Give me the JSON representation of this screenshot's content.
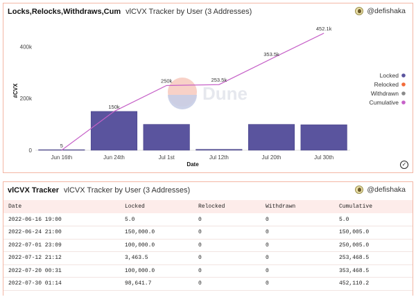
{
  "chart_panel": {
    "title": "Locks,Relocks,Withdraws,Cum",
    "subtitle": "vlCVX Tracker by User (3 Addresses)",
    "author": "@defishaka",
    "watermark": "Dune"
  },
  "chart_data": {
    "type": "bar",
    "categories": [
      "Jun 16th",
      "Jun 24th",
      "Jul 1st",
      "Jul 12th",
      "Jul 20th",
      "Jul 30th"
    ],
    "xlabel": "Date",
    "ylabel": "#CVX",
    "ylim": [
      0,
      460000
    ],
    "yticks": [
      0,
      200000,
      400000
    ],
    "ytick_labels": [
      "0",
      "200k",
      "400k"
    ],
    "legend_position": "right",
    "series": [
      {
        "name": "Locked",
        "type": "bar",
        "color": "#5a549e",
        "values": [
          5,
          150000,
          100000,
          3463.5,
          100000,
          98641.7
        ]
      },
      {
        "name": "Relocked",
        "type": "bar",
        "color": "#f26b3a",
        "values": [
          0,
          0,
          0,
          0,
          0,
          0
        ]
      },
      {
        "name": "Withdrawn",
        "type": "bar",
        "color": "#8a8a8a",
        "values": [
          0,
          0,
          0,
          0,
          0,
          0
        ]
      },
      {
        "name": "Cumulative",
        "type": "line",
        "color": "#c661c8",
        "values": [
          5,
          150005,
          250005,
          253468.5,
          353468.5,
          452110.2
        ],
        "labels": [
          "5",
          "150k",
          "250k",
          "253.5k",
          "353.5k",
          "452.1k"
        ]
      }
    ]
  },
  "table_panel": {
    "title": "vlCVX Tracker",
    "subtitle": "vlCVX Tracker by User (3 Addresses)",
    "author": "@defishaka",
    "columns": [
      "Date",
      "Locked",
      "Relocked",
      "Withdrawn",
      "Cumulative"
    ],
    "rows": [
      [
        "2022-06-16 19:00",
        "5.0",
        "0",
        "0",
        "5.0"
      ],
      [
        "2022-06-24 21:00",
        "150,000.0",
        "0",
        "0",
        "150,005.0"
      ],
      [
        "2022-07-01 23:09",
        "100,000.0",
        "0",
        "0",
        "250,005.0"
      ],
      [
        "2022-07-12 21:12",
        "3,463.5",
        "0",
        "0",
        "253,468.5"
      ],
      [
        "2022-07-20 00:31",
        "100,000.0",
        "0",
        "0",
        "353,468.5"
      ],
      [
        "2022-07-30 01:14",
        "98,641.7",
        "0",
        "0",
        "452,110.2"
      ]
    ]
  }
}
